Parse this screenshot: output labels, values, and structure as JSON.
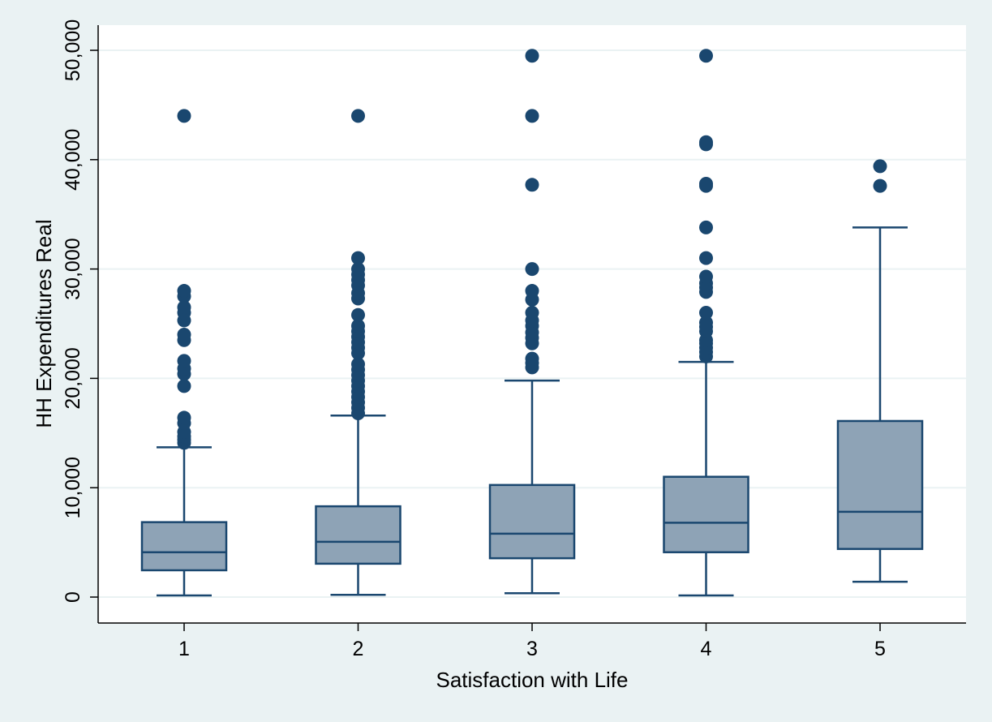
{
  "chart_data": {
    "type": "box",
    "xlabel": "Satisfaction with Life",
    "ylabel": "HH Expenditures Real",
    "ylim": [
      -2300,
      52300
    ],
    "yticks": [
      0,
      10000,
      20000,
      30000,
      40000,
      50000
    ],
    "ytick_labels": [
      "0",
      "10,000",
      "20,000",
      "30,000",
      "40,000",
      "50,000"
    ],
    "grid": true,
    "categories": [
      "1",
      "2",
      "3",
      "4",
      "5"
    ],
    "boxes": [
      {
        "category": "1",
        "whisker_low": 150,
        "q1": 2450,
        "median": 4100,
        "q3": 6850,
        "whisker_high": 13700,
        "outliers": [
          14100,
          14400,
          14700,
          15100,
          15900,
          16400,
          19300,
          20400,
          20900,
          21600,
          23500,
          24000,
          25300,
          26000,
          26500,
          27500,
          28000,
          44000
        ]
      },
      {
        "category": "2",
        "whisker_low": 200,
        "q1": 3050,
        "median": 5050,
        "q3": 8300,
        "whisker_high": 16600,
        "outliers": [
          16800,
          17300,
          17800,
          18300,
          18800,
          19300,
          19800,
          20300,
          20800,
          21300,
          22300,
          22800,
          23300,
          23800,
          24300,
          24800,
          25800,
          27300,
          27800,
          28500,
          29000,
          29500,
          30000,
          31000,
          44000
        ]
      },
      {
        "category": "3",
        "whisker_low": 350,
        "q1": 3550,
        "median": 5800,
        "q3": 10250,
        "whisker_high": 19800,
        "outliers": [
          21000,
          21400,
          21800,
          23200,
          23700,
          24200,
          24800,
          25300,
          26000,
          27200,
          28000,
          30000,
          37700,
          44000,
          49500
        ]
      },
      {
        "category": "4",
        "whisker_low": 150,
        "q1": 4100,
        "median": 6800,
        "q3": 11000,
        "whisker_high": 21500,
        "outliers": [
          22000,
          22400,
          22800,
          23200,
          23500,
          24300,
          24700,
          25100,
          26000,
          27900,
          28300,
          28700,
          29300,
          31000,
          33800,
          37600,
          37800,
          41400,
          41600,
          49500
        ]
      },
      {
        "category": "5",
        "whisker_low": 1400,
        "q1": 4400,
        "median": 7800,
        "q3": 16100,
        "whisker_high": 33800,
        "outliers": [
          37600,
          39400
        ]
      }
    ],
    "colors": {
      "background": "#eaf2f3",
      "plot_background": "#ffffff",
      "box_fill": "#8ea3b6",
      "box_stroke": "#1a476f",
      "outlier": "#1a476f",
      "grid": "#eaf2f3",
      "axis": "#000000"
    }
  }
}
